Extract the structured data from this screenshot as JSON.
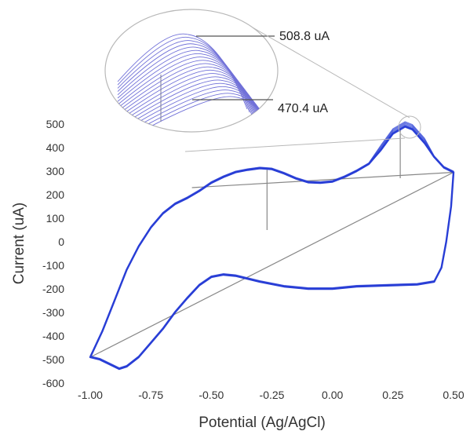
{
  "chart_data": {
    "type": "line",
    "xlabel": "Potential (Ag/AgCl)",
    "ylabel": "Current (uA)",
    "xlim": [
      -1.0,
      0.5
    ],
    "ylim": [
      -600,
      550
    ],
    "x_ticks": [
      "-1.00",
      "-0.75",
      "-0.50",
      "-0.25",
      "0.00",
      "0.25",
      "0.50"
    ],
    "x_tick_values": [
      -1.0,
      -0.75,
      -0.5,
      -0.25,
      0.0,
      0.25,
      0.5
    ],
    "y_ticks": [
      "500",
      "400",
      "300",
      "200",
      "100",
      "0",
      "-100",
      "-200",
      "-300",
      "-400",
      "-500",
      "-600"
    ],
    "y_tick_values": [
      500,
      400,
      300,
      200,
      100,
      0,
      -100,
      -200,
      -300,
      -400,
      -500,
      -600
    ],
    "grid": false,
    "line_color": "#2a3fd6",
    "inset_line_color": "#7070d8",
    "annotation_color": "#888888",
    "series": [
      {
        "values_forward": [
          [
            -1.0,
            -490
          ],
          [
            -0.95,
            -380
          ],
          [
            -0.9,
            -250
          ],
          [
            -0.85,
            -120
          ],
          [
            -0.8,
            -20
          ],
          [
            -0.75,
            60
          ],
          [
            -0.7,
            120
          ],
          [
            -0.65,
            160
          ],
          [
            -0.6,
            185
          ],
          [
            -0.55,
            215
          ],
          [
            -0.5,
            250
          ],
          [
            -0.45,
            275
          ],
          [
            -0.4,
            295
          ],
          [
            -0.35,
            305
          ],
          [
            -0.3,
            312
          ],
          [
            -0.25,
            308
          ],
          [
            -0.2,
            290
          ],
          [
            -0.15,
            268
          ],
          [
            -0.1,
            252
          ],
          [
            -0.05,
            250
          ],
          [
            0.0,
            255
          ],
          [
            0.05,
            275
          ],
          [
            0.1,
            300
          ],
          [
            0.15,
            330
          ],
          [
            0.2,
            390
          ],
          [
            0.25,
            460
          ],
          [
            0.3,
            490
          ],
          [
            0.33,
            478
          ],
          [
            0.38,
            420
          ],
          [
            0.42,
            360
          ],
          [
            0.46,
            315
          ],
          [
            0.5,
            295
          ]
        ],
        "values_reverse": [
          [
            0.5,
            295
          ],
          [
            0.49,
            150
          ],
          [
            0.47,
            0
          ],
          [
            0.45,
            -110
          ],
          [
            0.42,
            -170
          ],
          [
            0.35,
            -182
          ],
          [
            0.25,
            -185
          ],
          [
            0.1,
            -190
          ],
          [
            0.0,
            -200
          ],
          [
            -0.1,
            -200
          ],
          [
            -0.2,
            -190
          ],
          [
            -0.3,
            -170
          ],
          [
            -0.4,
            -145
          ],
          [
            -0.45,
            -140
          ],
          [
            -0.5,
            -150
          ],
          [
            -0.55,
            -185
          ],
          [
            -0.6,
            -240
          ],
          [
            -0.65,
            -300
          ],
          [
            -0.7,
            -370
          ],
          [
            -0.75,
            -430
          ],
          [
            -0.8,
            -490
          ],
          [
            -0.85,
            -530
          ],
          [
            -0.88,
            -540
          ],
          [
            -0.92,
            -520
          ],
          [
            -0.96,
            -500
          ],
          [
            -1.0,
            -490
          ]
        ]
      }
    ],
    "annotations": [
      {
        "text": "508.8 uA",
        "value": 508.8
      },
      {
        "text": "470.4 uA",
        "value": 470.4
      }
    ],
    "baseline_lines": [
      {
        "from": [
          -1.0,
          -490
        ],
        "to": [
          0.5,
          295
        ]
      },
      {
        "from": [
          -0.58,
          230
        ],
        "to": [
          0.5,
          295
        ]
      }
    ],
    "peak_markers": [
      {
        "x": -0.27,
        "y_top": 305,
        "y_bottom": 50
      },
      {
        "x": 0.28,
        "y_top": 480,
        "y_bottom": 270
      }
    ]
  }
}
